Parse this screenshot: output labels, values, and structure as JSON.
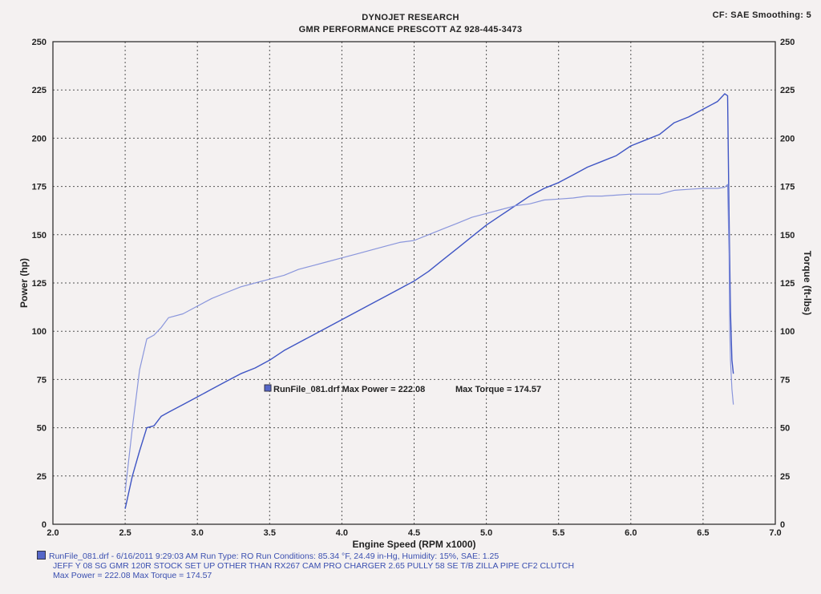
{
  "header": {
    "title1": "DYNOJET RESEARCH",
    "title2": "GMR PERFORMANCE  PRESCOTT AZ  928-445-3473",
    "settings": "CF: SAE  Smoothing: 5"
  },
  "annotation": {
    "run_label": "RunFile_081.drf Max Power = 222.08",
    "max_torque": "Max Torque = 174.57"
  },
  "footer": {
    "line1": "RunFile_081.drf - 6/16/2011 9:29:03 AM  Run Type: RO  Run Conditions: 85.34 °F, 24.49 in-Hg,  Humidity:  15%, SAE: 1.25",
    "line2": "JEFF Y 08 SG GMR  120R STOCK SET UP OTHER THAN  RX267 CAM PRO CHARGER 2.65 PULLY 58 SE T/B ZILLA PIPE  CF2 CLUTCH",
    "line3": "Max Power = 222.08  Max Torque = 174.57"
  },
  "colors": {
    "power": "#3f55c4",
    "torque": "#8a96dc",
    "grid": "#555555",
    "background": "#f4f1f1"
  },
  "chart_data": {
    "type": "line",
    "xlabel": "Engine Speed (RPM x1000)",
    "ylabel": "Power (hp)",
    "y2label": "Torque (ft-lbs)",
    "xlim": [
      2.0,
      7.0
    ],
    "ylim": [
      0,
      250
    ],
    "y2lim": [
      0,
      250
    ],
    "x_ticks": [
      "2.0",
      "2.5",
      "3.0",
      "3.5",
      "4.0",
      "4.5",
      "5.0",
      "5.5",
      "6.0",
      "6.5",
      "7.0"
    ],
    "y_ticks": [
      "0",
      "25",
      "50",
      "75",
      "100",
      "125",
      "150",
      "175",
      "200",
      "225",
      "250"
    ],
    "y2_ticks": [
      "0",
      "25",
      "50",
      "75",
      "100",
      "125",
      "150",
      "175",
      "200",
      "225",
      "250"
    ],
    "grid": true,
    "series": [
      {
        "name": "Power",
        "axis": "left",
        "points": [
          [
            2.5,
            8
          ],
          [
            2.55,
            25
          ],
          [
            2.6,
            38
          ],
          [
            2.65,
            50
          ],
          [
            2.7,
            51
          ],
          [
            2.75,
            56
          ],
          [
            2.8,
            58
          ],
          [
            2.9,
            62
          ],
          [
            3.0,
            66
          ],
          [
            3.1,
            70
          ],
          [
            3.2,
            74
          ],
          [
            3.3,
            78
          ],
          [
            3.4,
            81
          ],
          [
            3.5,
            85
          ],
          [
            3.6,
            90
          ],
          [
            3.7,
            94
          ],
          [
            3.8,
            98
          ],
          [
            3.9,
            102
          ],
          [
            4.0,
            106
          ],
          [
            4.1,
            110
          ],
          [
            4.2,
            114
          ],
          [
            4.3,
            118
          ],
          [
            4.4,
            122
          ],
          [
            4.5,
            126
          ],
          [
            4.6,
            131
          ],
          [
            4.7,
            137
          ],
          [
            4.8,
            143
          ],
          [
            4.9,
            149
          ],
          [
            5.0,
            155
          ],
          [
            5.1,
            160
          ],
          [
            5.2,
            165
          ],
          [
            5.3,
            170
          ],
          [
            5.4,
            174
          ],
          [
            5.5,
            177
          ],
          [
            5.6,
            181
          ],
          [
            5.7,
            185
          ],
          [
            5.8,
            188
          ],
          [
            5.9,
            191
          ],
          [
            6.0,
            196
          ],
          [
            6.1,
            199
          ],
          [
            6.2,
            202
          ],
          [
            6.3,
            208
          ],
          [
            6.4,
            211
          ],
          [
            6.5,
            215
          ],
          [
            6.6,
            219
          ],
          [
            6.65,
            223
          ],
          [
            6.67,
            222
          ],
          [
            6.68,
            160
          ],
          [
            6.69,
            110
          ],
          [
            6.7,
            85
          ],
          [
            6.71,
            78
          ]
        ]
      },
      {
        "name": "Torque",
        "axis": "right",
        "points": [
          [
            2.5,
            17
          ],
          [
            2.55,
            50
          ],
          [
            2.6,
            80
          ],
          [
            2.65,
            96
          ],
          [
            2.7,
            98
          ],
          [
            2.75,
            102
          ],
          [
            2.8,
            107
          ],
          [
            2.9,
            109
          ],
          [
            3.0,
            113
          ],
          [
            3.1,
            117
          ],
          [
            3.2,
            120
          ],
          [
            3.3,
            123
          ],
          [
            3.4,
            125
          ],
          [
            3.5,
            127
          ],
          [
            3.6,
            129
          ],
          [
            3.7,
            132
          ],
          [
            3.8,
            134
          ],
          [
            3.9,
            136
          ],
          [
            4.0,
            138
          ],
          [
            4.1,
            140
          ],
          [
            4.2,
            142
          ],
          [
            4.3,
            144
          ],
          [
            4.4,
            146
          ],
          [
            4.5,
            147
          ],
          [
            4.6,
            150
          ],
          [
            4.7,
            153
          ],
          [
            4.8,
            156
          ],
          [
            4.9,
            159
          ],
          [
            5.0,
            161
          ],
          [
            5.1,
            163
          ],
          [
            5.2,
            165
          ],
          [
            5.3,
            166
          ],
          [
            5.4,
            168
          ],
          [
            5.5,
            168.5
          ],
          [
            5.6,
            169
          ],
          [
            5.7,
            170
          ],
          [
            5.8,
            170
          ],
          [
            5.9,
            170.5
          ],
          [
            6.0,
            171
          ],
          [
            6.1,
            171
          ],
          [
            6.2,
            171
          ],
          [
            6.3,
            173
          ],
          [
            6.4,
            173.5
          ],
          [
            6.5,
            174
          ],
          [
            6.6,
            174
          ],
          [
            6.65,
            174.57
          ],
          [
            6.67,
            176
          ],
          [
            6.68,
            140
          ],
          [
            6.685,
            100
          ],
          [
            6.69,
            85
          ],
          [
            6.7,
            70
          ],
          [
            6.71,
            62
          ]
        ]
      }
    ]
  }
}
